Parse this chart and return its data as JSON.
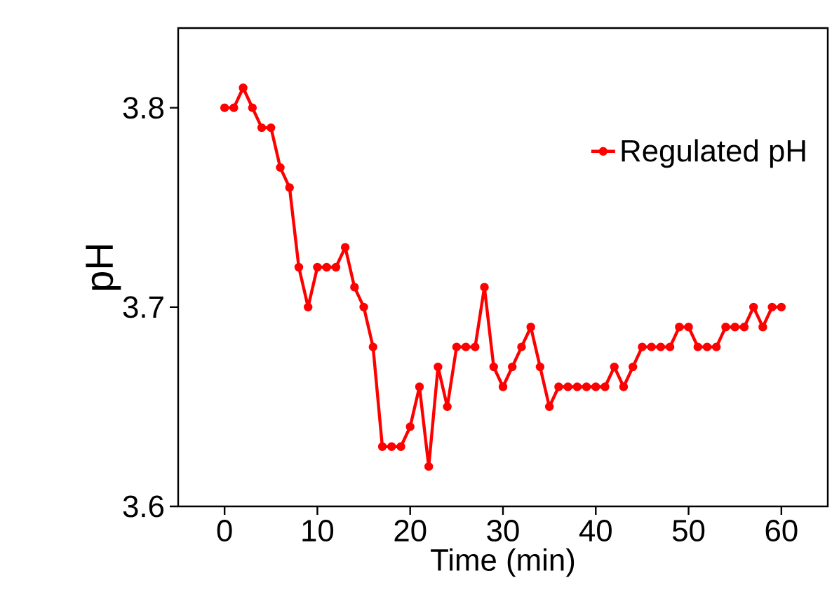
{
  "chart_data": {
    "type": "line",
    "xlabel": "Time (min)",
    "ylabel": "pH",
    "x": [
      0,
      1,
      2,
      3,
      4,
      5,
      6,
      7,
      8,
      9,
      10,
      11,
      12,
      13,
      14,
      15,
      16,
      17,
      18,
      19,
      20,
      21,
      22,
      23,
      24,
      25,
      26,
      27,
      28,
      29,
      30,
      31,
      32,
      33,
      34,
      35,
      36,
      37,
      38,
      39,
      40,
      41,
      42,
      43,
      44,
      45,
      46,
      47,
      48,
      49,
      50,
      51,
      52,
      53,
      54,
      55,
      56,
      57,
      58,
      59,
      60
    ],
    "series": [
      {
        "name": "Regulated pH",
        "color": "#ff0000",
        "values": [
          3.8,
          3.8,
          3.81,
          3.8,
          3.79,
          3.79,
          3.77,
          3.76,
          3.72,
          3.7,
          3.72,
          3.72,
          3.72,
          3.73,
          3.71,
          3.7,
          3.68,
          3.63,
          3.63,
          3.63,
          3.64,
          3.66,
          3.62,
          3.67,
          3.65,
          3.68,
          3.68,
          3.68,
          3.71,
          3.67,
          3.66,
          3.67,
          3.68,
          3.69,
          3.67,
          3.65,
          3.66,
          3.66,
          3.66,
          3.66,
          3.66,
          3.66,
          3.67,
          3.66,
          3.67,
          3.68,
          3.68,
          3.68,
          3.68,
          3.69,
          3.69,
          3.68,
          3.68,
          3.68,
          3.69,
          3.69,
          3.69,
          3.7,
          3.69,
          3.7,
          3.7
        ]
      }
    ],
    "xlim": [
      -5,
      65
    ],
    "ylim": [
      3.6,
      3.84
    ],
    "xticks": [
      0,
      10,
      20,
      30,
      40,
      50,
      60
    ],
    "yticks": [
      3.6,
      3.7,
      3.8
    ],
    "grid": false,
    "legend": "top right",
    "marker": "circle",
    "line_style": "solid"
  }
}
